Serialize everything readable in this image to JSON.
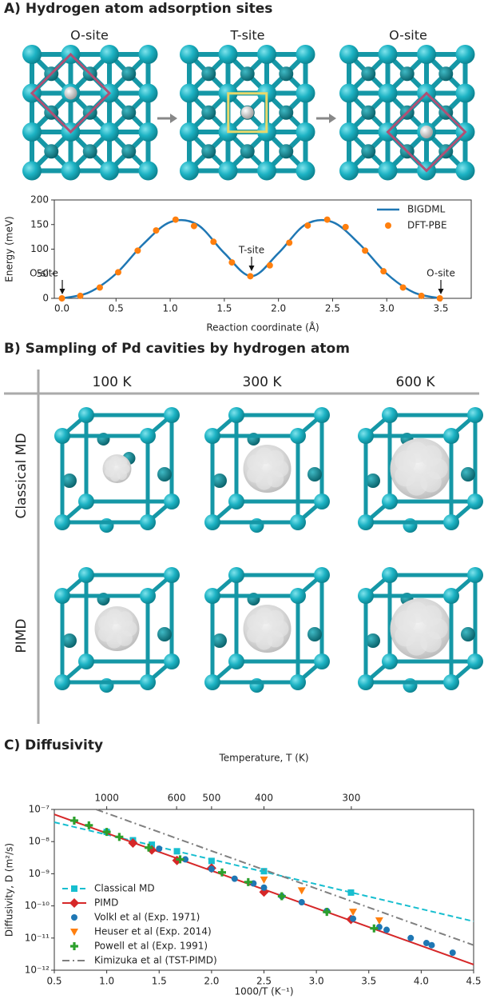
{
  "panel_a": {
    "title": "A) Hydrogen atom adsorption sites",
    "site_labels": [
      "O-site",
      "T-site",
      "O-site"
    ]
  },
  "panel_b": {
    "title": "B) Sampling of Pd cavities by hydrogen atom",
    "columns": [
      "100 K",
      "300 K",
      "600 K"
    ],
    "rows": [
      "Classical MD",
      "PIMD"
    ]
  },
  "chart_data": [
    {
      "type": "line",
      "x_label": "Reaction coordinate (Å)",
      "y_label": "Energy (meV)",
      "xlim": [
        -0.07,
        3.78
      ],
      "ylim": [
        0,
        200
      ],
      "xticks": [
        {
          "value": 0,
          "label": "0.0"
        },
        0.5,
        {
          "value": 1,
          "label": "1.0"
        },
        1.5,
        {
          "value": 2,
          "label": "2.0"
        },
        2.5,
        {
          "value": 3,
          "label": "3.0"
        },
        3.5
      ],
      "yticks": [
        0,
        50,
        100,
        150,
        200
      ],
      "legend": "upper right",
      "annotations": [
        "O-site",
        "T-site",
        "O-site"
      ],
      "series": [
        {
          "name": "BIGDML",
          "color": "#1f77b4",
          "kind": "line",
          "x": [
            0,
            0.25,
            0.5,
            0.75,
            1,
            1.25,
            1.5,
            1.75,
            2,
            2.25,
            2.5,
            2.75,
            3,
            3.25,
            3.5
          ],
          "values": [
            0,
            12,
            50,
            110,
            155,
            150,
            92,
            45,
            92,
            150,
            155,
            110,
            50,
            12,
            0
          ]
        },
        {
          "name": "DFT-PBE",
          "color": "#ff7f0e",
          "kind": "scatter",
          "x": [
            0,
            0.17,
            0.35,
            0.52,
            0.7,
            0.87,
            1.05,
            1.22,
            1.4,
            1.57,
            1.74,
            1.92,
            2.1,
            2.27,
            2.45,
            2.62,
            2.8,
            2.97,
            3.15,
            3.32,
            3.49
          ],
          "values": [
            0,
            5,
            22,
            53,
            97,
            138,
            160,
            147,
            115,
            73,
            45,
            67,
            113,
            148,
            160,
            145,
            97,
            55,
            22,
            5,
            0
          ]
        }
      ]
    },
    {
      "type": "scatter",
      "title": "C) Diffusivity",
      "x_label": "1000/T (K⁻¹)",
      "y_label": "Diffusivity, D (m²/s)",
      "top_label": "Temperature, T (K)",
      "top_ticks": [
        1000,
        600,
        500,
        400,
        300
      ],
      "xlim": [
        0.5,
        4.5
      ],
      "ylim": [
        1e-12,
        1e-07
      ],
      "log_y": true,
      "xticks": [
        0.5,
        {
          "value": 1,
          "label": "1.0"
        },
        1.5,
        {
          "value": 2,
          "label": "2.0"
        },
        2.5,
        {
          "value": 3,
          "label": "3.0"
        },
        3.5,
        {
          "value": 4,
          "label": "4.0"
        },
        4.5
      ],
      "yticks": [
        {
          "value": 1e-12,
          "label": "10⁻¹²"
        },
        {
          "value": 1e-11,
          "label": "10⁻¹¹"
        },
        {
          "value": 1e-10,
          "label": "10⁻¹⁰"
        },
        {
          "value": 1e-09,
          "label": "10⁻⁹"
        },
        {
          "value": 1e-08,
          "label": "10⁻⁸"
        },
        {
          "value": 1e-07,
          "label": "10⁻⁷"
        }
      ],
      "legend": "lower left",
      "series": [
        {
          "name": "Classical MD",
          "color": "#17becf",
          "marker": "square",
          "line": "dashed",
          "x": [
            1.0,
            1.25,
            1.43,
            1.67,
            2.0,
            2.5,
            3.33
          ],
          "values": [
            2e-08,
            1.1e-08,
            8e-09,
            5e-09,
            2.5e-09,
            1.2e-09,
            2.6e-10
          ],
          "fit_x": [
            0.5,
            4.5
          ],
          "fit_values": [
            4e-08,
            3.3e-11
          ]
        },
        {
          "name": "PIMD",
          "color": "#d62728",
          "marker": "diamond",
          "line": "solid",
          "x": [
            1.25,
            1.43,
            1.67,
            2.0,
            2.5,
            3.33
          ],
          "values": [
            9e-09,
            5.5e-09,
            2.6e-09,
            1.5e-09,
            2.7e-10,
            3.8e-11
          ],
          "fit_x": [
            0.5,
            4.5
          ],
          "fit_values": [
            7e-08,
            1.5e-12
          ]
        },
        {
          "name": "Volkl et al (Exp. 1971)",
          "color": "#1f77b4",
          "marker": "circle",
          "x": [
            1.5,
            1.75,
            2.0,
            2.22,
            2.4,
            2.5,
            2.67,
            2.86,
            3.1,
            3.35,
            3.6,
            3.67,
            3.9,
            4.05,
            4.1,
            4.3
          ],
          "values": [
            6e-09,
            2.8e-09,
            1.4e-09,
            7e-10,
            5e-10,
            3.7e-10,
            2e-10,
            1.3e-10,
            7e-11,
            4e-11,
            2.2e-11,
            1.8e-11,
            1e-11,
            7e-12,
            6e-12,
            3.5e-12
          ]
        },
        {
          "name": "Heuser et al (Exp. 2014)",
          "color": "#ff7f0e",
          "marker": "triangle",
          "x": [
            2.5,
            2.86,
            3.35,
            3.6
          ],
          "values": [
            6.5e-10,
            3e-10,
            6.5e-11,
            3.5e-11
          ]
        },
        {
          "name": "Powell et al (Exp. 1991)",
          "color": "#2ca02c",
          "marker": "plus",
          "x": [
            0.69,
            0.83,
            1.0,
            1.12,
            1.4,
            1.7,
            2.1,
            2.35,
            2.67,
            3.1,
            3.55
          ],
          "values": [
            4.5e-08,
            3.2e-08,
            2e-08,
            1.4e-08,
            6.5e-09,
            2.8e-09,
            1.1e-09,
            5.5e-10,
            2e-10,
            6.5e-11,
            2e-11
          ]
        },
        {
          "name": "Kimizuka et al (TST-PIMD)",
          "color": "#7f7f7f",
          "line": "dashdot",
          "fit_x": [
            0.9,
            4.5
          ],
          "fit_values": [
            1e-07,
            6e-12
          ]
        }
      ]
    }
  ]
}
